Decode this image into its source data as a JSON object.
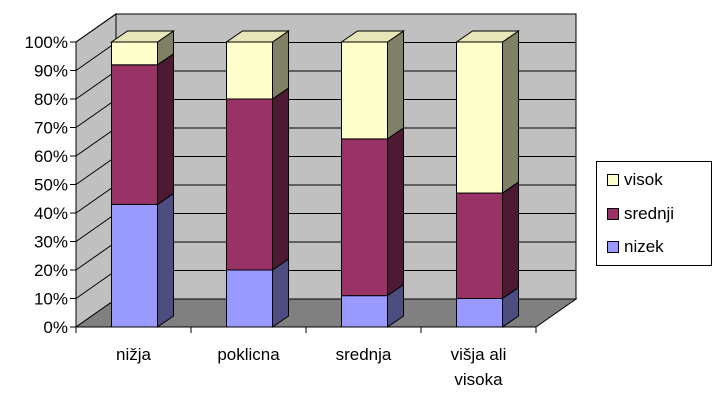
{
  "chart_data": {
    "type": "bar",
    "stacked": true,
    "three_d": true,
    "categories": [
      "nižja",
      "poklicna",
      "srednja",
      [
        "višja ali",
        "visoka"
      ]
    ],
    "series": [
      {
        "name": "nizek",
        "values": [
          43,
          20,
          11,
          10
        ]
      },
      {
        "name": "srednji",
        "values": [
          49,
          60,
          55,
          37
        ]
      },
      {
        "name": "visok",
        "values": [
          8,
          20,
          34,
          53
        ]
      }
    ],
    "ylim": [
      0,
      100
    ],
    "y_ticks": [
      "0%",
      "10%",
      "20%",
      "30%",
      "40%",
      "50%",
      "60%",
      "70%",
      "80%",
      "90%",
      "100%"
    ],
    "grid": true,
    "legend_position": "right",
    "colors": {
      "nizek": {
        "front": "#9999ff",
        "side": "#4d4d80",
        "top": "#b3b3ff"
      },
      "srednji": {
        "front": "#993366",
        "side": "#4d1a33",
        "top": "#b34d80"
      },
      "visok": {
        "front": "#ffffcc",
        "side": "#808066",
        "top": "#e6e6b8"
      },
      "wall": "#c0c0c0",
      "floor": "#808080"
    }
  },
  "legend": {
    "items": [
      {
        "label": "visok",
        "color": "#ffffcc"
      },
      {
        "label": "srednji",
        "color": "#993366"
      },
      {
        "label": "nizek",
        "color": "#9999ff"
      }
    ]
  }
}
